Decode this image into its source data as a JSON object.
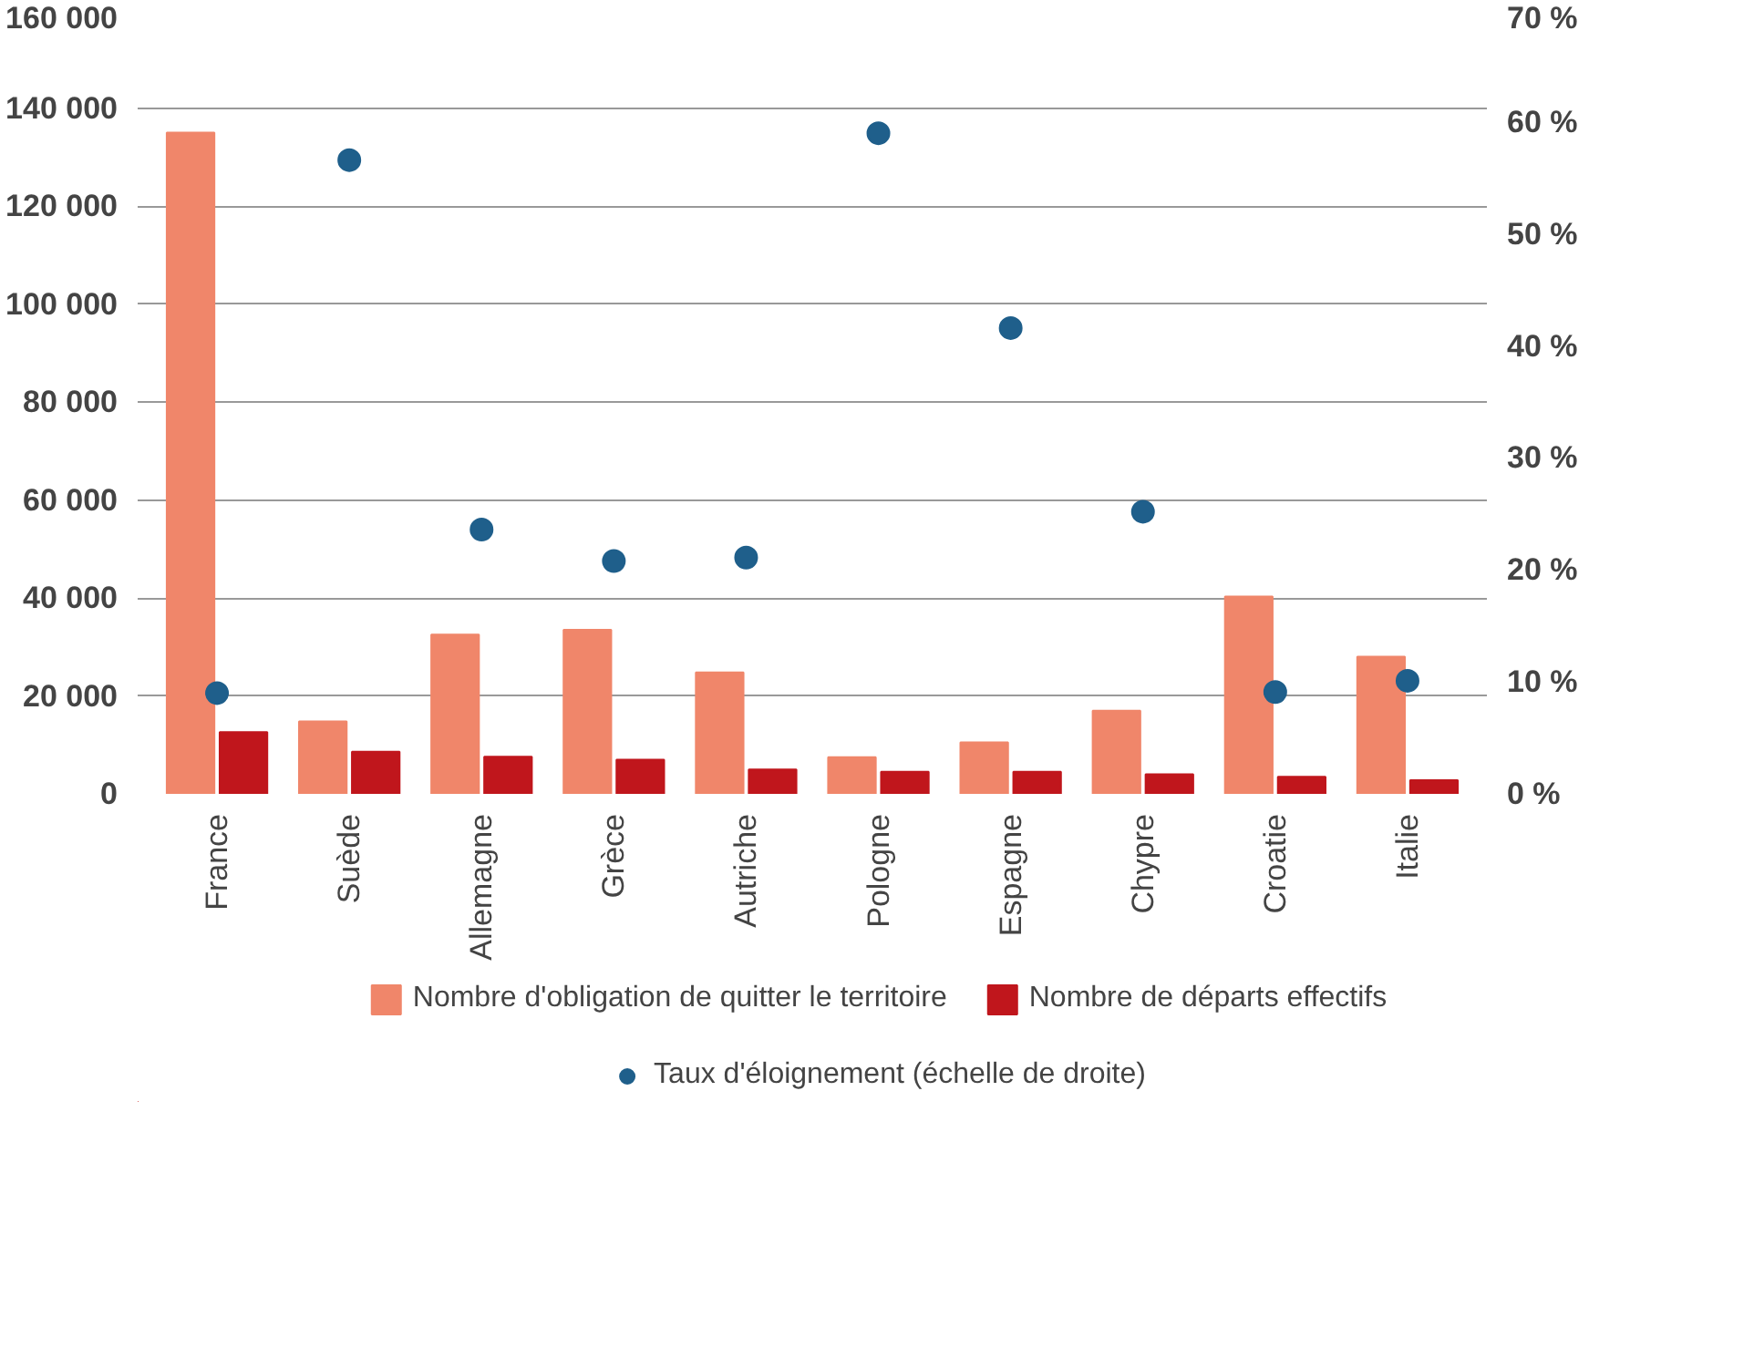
{
  "chart_data": {
    "type": "bar",
    "categories": [
      "France",
      "Suède",
      "Allemagne",
      "Grèce",
      "Autriche",
      "Pologne",
      "Espagne",
      "Chypre",
      "Croatie",
      "Italie"
    ],
    "series": [
      {
        "name": "Nombre d'obligation de quitter le territoire",
        "color": "#f0866a",
        "values": [
          135000,
          14800,
          32500,
          33500,
          24800,
          7500,
          10500,
          17000,
          40300,
          28000
        ]
      },
      {
        "name": "Nombre de départs effectifs",
        "color": "#c0161c",
        "values": [
          12600,
          8600,
          7600,
          7000,
          5000,
          4500,
          4500,
          4000,
          3500,
          2800
        ]
      },
      {
        "name": "Taux d'éloignement (échelle de droite)",
        "color": "#1f5f8b",
        "type": "scatter",
        "axis": "y2",
        "values": [
          9.0,
          56.6,
          23.6,
          20.8,
          21.1,
          59.0,
          41.6,
          25.2,
          9.1,
          10.1
        ]
      }
    ],
    "ylim": [
      0,
      160000
    ],
    "yticks": [
      {
        "value": 0,
        "label": "0"
      },
      {
        "value": 20000,
        "label": "20 000"
      },
      {
        "value": 40000,
        "label": "40 000"
      },
      {
        "value": 60000,
        "label": "60 000"
      },
      {
        "value": 80000,
        "label": "80 000"
      },
      {
        "value": 100000,
        "label": "100 000"
      },
      {
        "value": 120000,
        "label": "120 000"
      },
      {
        "value": 140000,
        "label": "140 000"
      },
      {
        "value": 160000,
        "label": "160 000"
      }
    ],
    "y2lim": [
      0,
      70
    ],
    "y2ticks": [
      {
        "value": 0,
        "label": "0 %"
      },
      {
        "value": 10,
        "label": "10 %"
      },
      {
        "value": 20,
        "label": "20 %"
      },
      {
        "value": 30,
        "label": "30 %"
      },
      {
        "value": 40,
        "label": "40 %"
      },
      {
        "value": 50,
        "label": "50 %"
      },
      {
        "value": 60,
        "label": "60 %"
      },
      {
        "value": 70,
        "label": "70 %"
      }
    ],
    "grid": "y",
    "legend": "bottom",
    "marker": "circle"
  }
}
